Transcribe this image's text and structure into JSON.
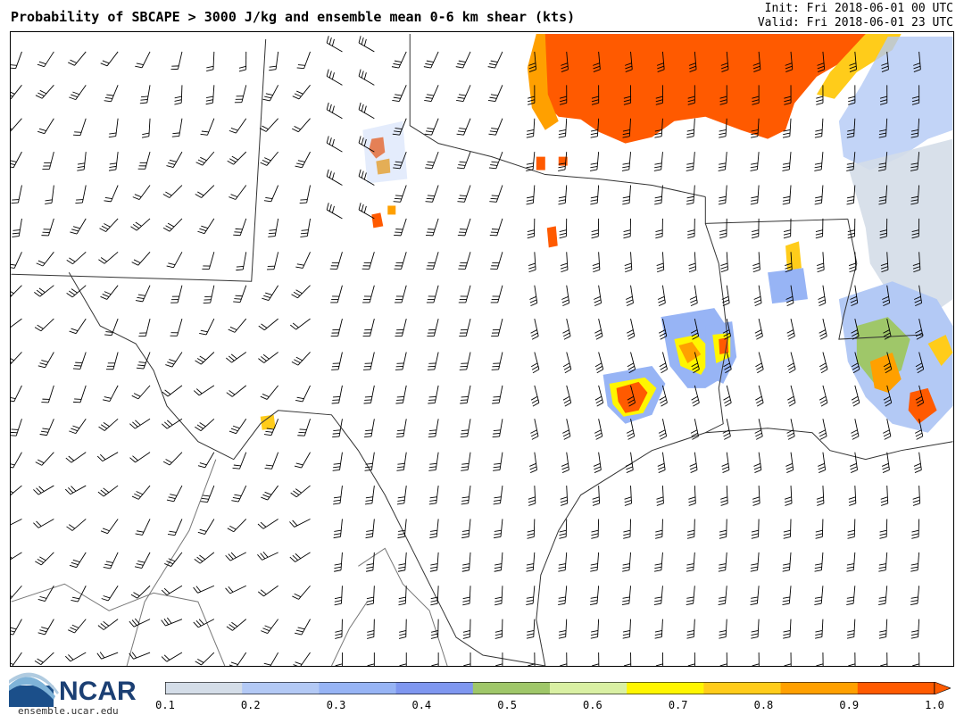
{
  "header": {
    "title": "Probability of SBCAPE > 3000 J/kg and ensemble mean 0-6 km shear (kts)",
    "init": "Init: Fri 2018-06-01 00 UTC",
    "valid": "Valid: Fri 2018-06-01 23 UTC"
  },
  "branding": {
    "logo": "NCAR",
    "url": "ensemble.ucar.edu"
  },
  "colorbar": {
    "ticks": [
      "0.1",
      "0.2",
      "0.3",
      "0.4",
      "0.5",
      "0.6",
      "0.7",
      "0.8",
      "0.9",
      "1.0"
    ],
    "colors": [
      "#d4dde8",
      "#b3c9f5",
      "#97b4f5",
      "#7f97f0",
      "#9fc769",
      "#d9f0a3",
      "#fff600",
      "#ffcc1a",
      "#ffa000",
      "#ff5a00"
    ],
    "extend_arrow_color": "#ff5a00"
  },
  "map": {
    "background": "#ffffff",
    "border_color": "#000000",
    "state_line_color": "#555555",
    "barb_color": "#000000"
  }
}
